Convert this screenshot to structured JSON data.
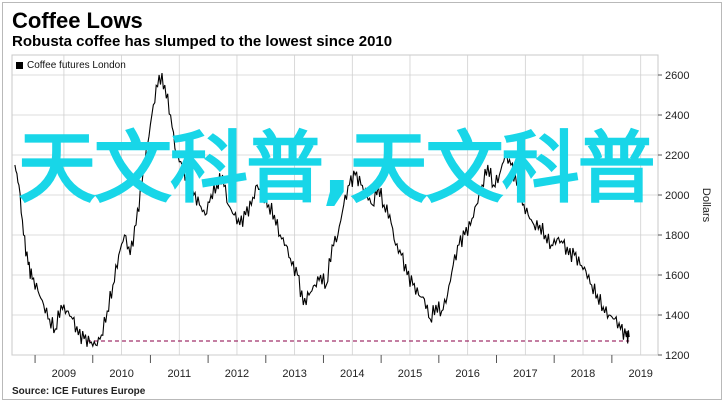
{
  "title": "Coffee Lows",
  "subtitle": "Robusta coffee has slumped to the lowest since 2010",
  "source": "Source: ICE Futures Europe",
  "watermark": "天文科普,天文科普",
  "colors": {
    "series": "#000000",
    "reference_line": "#a0306a",
    "grid": "#d0d0d0",
    "watermark": "#18d6e8"
  },
  "chart_data": {
    "type": "line",
    "title": "Coffee Lows",
    "subtitle": "Robusta coffee has slumped to the lowest since 2010",
    "ylabel": "Dollars",
    "ylim": [
      1200,
      2700
    ],
    "yticks": [
      1200,
      1400,
      1600,
      1800,
      2000,
      2200,
      2400,
      2600
    ],
    "xlim": [
      2008.6,
      2019.8
    ],
    "xticks": [
      "2009",
      "2010",
      "2011",
      "2012",
      "2013",
      "2014",
      "2015",
      "2016",
      "2017",
      "2018",
      "2019"
    ],
    "grid": true,
    "legend_position": "top-left",
    "series": [
      {
        "name": "Coffee futures London",
        "x": [
          2008.65,
          2008.72,
          2008.8,
          2008.88,
          2008.95,
          2009.05,
          2009.15,
          2009.25,
          2009.35,
          2009.45,
          2009.55,
          2009.65,
          2009.75,
          2009.85,
          2009.95,
          2010.05,
          2010.15,
          2010.25,
          2010.35,
          2010.45,
          2010.55,
          2010.65,
          2010.75,
          2010.85,
          2010.95,
          2011.05,
          2011.15,
          2011.25,
          2011.35,
          2011.45,
          2011.55,
          2011.65,
          2011.75,
          2011.85,
          2011.95,
          2012.05,
          2012.15,
          2012.25,
          2012.35,
          2012.45,
          2012.55,
          2012.65,
          2012.75,
          2012.85,
          2012.95,
          2013.05,
          2013.15,
          2013.25,
          2013.35,
          2013.45,
          2013.55,
          2013.65,
          2013.75,
          2013.85,
          2013.95,
          2014.05,
          2014.15,
          2014.25,
          2014.35,
          2014.45,
          2014.55,
          2014.65,
          2014.75,
          2014.85,
          2014.95,
          2015.05,
          2015.15,
          2015.25,
          2015.35,
          2015.45,
          2015.55,
          2015.65,
          2015.75,
          2015.85,
          2015.95,
          2016.05,
          2016.15,
          2016.25,
          2016.35,
          2016.45,
          2016.55,
          2016.65,
          2016.75,
          2016.85,
          2016.95,
          2017.05,
          2017.15,
          2017.25,
          2017.35,
          2017.45,
          2017.55,
          2017.65,
          2017.75,
          2017.85,
          2017.95,
          2018.05,
          2018.15,
          2018.25,
          2018.35,
          2018.45,
          2018.55,
          2018.65,
          2018.75,
          2018.85,
          2018.95,
          2019.05,
          2019.15,
          2019.25,
          2019.3
        ],
        "y": [
          2150,
          2050,
          1800,
          1650,
          1580,
          1520,
          1450,
          1380,
          1330,
          1450,
          1420,
          1380,
          1300,
          1280,
          1260,
          1250,
          1300,
          1420,
          1550,
          1700,
          1800,
          1700,
          1850,
          2050,
          2250,
          2450,
          2600,
          2550,
          2400,
          2200,
          2150,
          2050,
          2000,
          1950,
          1900,
          2000,
          2050,
          2100,
          1950,
          1900,
          1850,
          1900,
          1950,
          2050,
          2000,
          1950,
          1900,
          1800,
          1750,
          1650,
          1600,
          1450,
          1500,
          1550,
          1600,
          1550,
          1750,
          1800,
          1950,
          2050,
          2100,
          2050,
          2000,
          1950,
          2050,
          1950,
          1900,
          1750,
          1700,
          1600,
          1550,
          1500,
          1480,
          1380,
          1450,
          1420,
          1500,
          1650,
          1750,
          1800,
          1850,
          1950,
          2050,
          2150,
          2050,
          2100,
          2200,
          2150,
          2050,
          1950,
          1900,
          1850,
          1850,
          1800,
          1750,
          1780,
          1760,
          1700,
          1700,
          1650,
          1620,
          1550,
          1500,
          1440,
          1400,
          1380,
          1330,
          1290,
          1290
        ]
      }
    ],
    "reference_line": {
      "y": 1270,
      "x_start": 2009.9,
      "x_end": 2019.3
    }
  }
}
